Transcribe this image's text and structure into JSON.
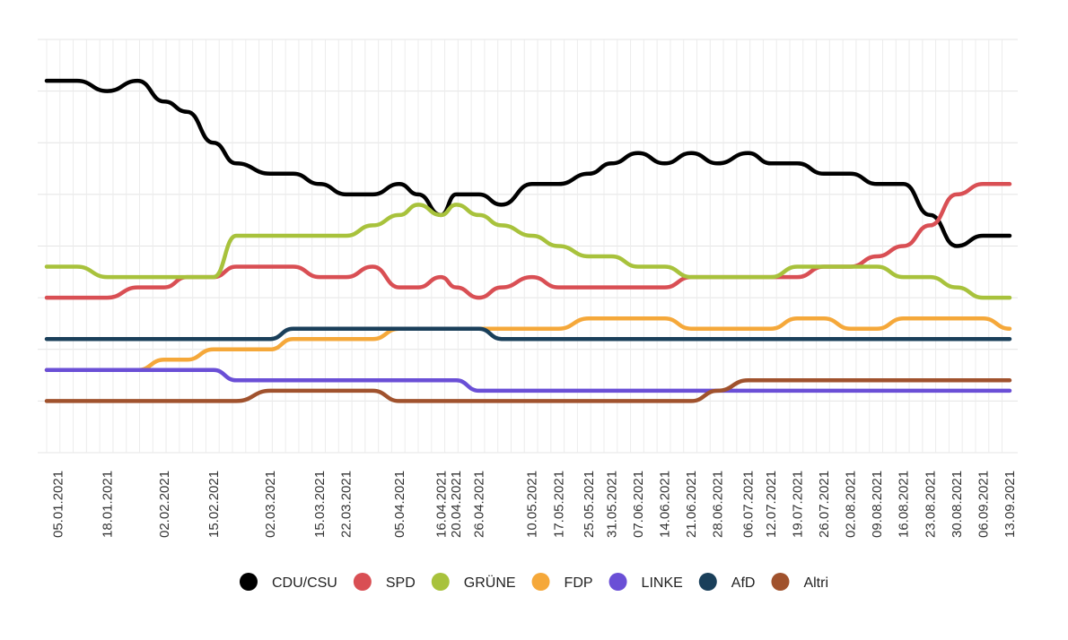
{
  "chart_data": {
    "type": "line",
    "title": "",
    "xlabel": "",
    "ylabel": "",
    "ylim": [
      0,
      40
    ],
    "grid": true,
    "legend_position": "bottom",
    "x": [
      "2021-01-02",
      "2021-01-10",
      "2021-01-18",
      "2021-01-26",
      "2021-02-02",
      "2021-02-08",
      "2021-02-15",
      "2021-02-21",
      "2021-03-02",
      "2021-03-08",
      "2021-03-15",
      "2021-03-22",
      "2021-03-29",
      "2021-04-05",
      "2021-04-10",
      "2021-04-16",
      "2021-04-20",
      "2021-04-26",
      "2021-05-02",
      "2021-05-10",
      "2021-05-17",
      "2021-05-25",
      "2021-05-31",
      "2021-06-07",
      "2021-06-14",
      "2021-06-21",
      "2021-06-28",
      "2021-07-06",
      "2021-07-12",
      "2021-07-19",
      "2021-07-26",
      "2021-08-02",
      "2021-08-09",
      "2021-08-16",
      "2021-08-23",
      "2021-08-30",
      "2021-09-06",
      "2021-09-13"
    ],
    "x_ticks": [
      "05.01.2021",
      "18.01.2021",
      "02.02.2021",
      "15.02.2021",
      "02.03.2021",
      "15.03.2021",
      "22.03.2021",
      "05.04.2021",
      "16.04.2021",
      "20.04.2021",
      "26.04.2021",
      "10.05.2021",
      "17.05.2021",
      "25.05.2021",
      "31.05.2021",
      "07.06.2021",
      "14.06.2021",
      "21.06.2021",
      "28.06.2021",
      "06.07.2021",
      "12.07.2021",
      "19.07.2021",
      "26.07.2021",
      "02.08.2021",
      "09.08.2021",
      "16.08.2021",
      "23.08.2021",
      "30.08.2021",
      "06.09.2021",
      "13.09.2021"
    ],
    "series": [
      {
        "name": "CDU/CSU",
        "color": "#000000",
        "values": [
          36,
          36,
          35,
          36,
          34,
          33,
          30,
          28,
          27,
          27,
          26,
          25,
          25,
          26,
          25,
          23,
          25,
          25,
          24,
          26,
          26,
          27,
          28,
          29,
          28,
          29,
          28,
          29,
          28,
          28,
          27,
          27,
          26,
          26,
          23,
          20,
          21,
          21
        ]
      },
      {
        "name": "SPD",
        "color": "#d94f54",
        "values": [
          15,
          15,
          15,
          16,
          16,
          17,
          17,
          18,
          18,
          18,
          17,
          17,
          18,
          16,
          16,
          17,
          16,
          15,
          16,
          17,
          16,
          16,
          16,
          16,
          16,
          17,
          17,
          17,
          17,
          17,
          18,
          18,
          19,
          20,
          22,
          25,
          26,
          26
        ]
      },
      {
        "name": "GRÜNE",
        "color": "#a8c23c",
        "values": [
          18,
          18,
          17,
          17,
          17,
          17,
          17,
          21,
          21,
          21,
          21,
          21,
          22,
          23,
          24,
          23,
          24,
          23,
          22,
          21,
          20,
          19,
          19,
          18,
          18,
          17,
          17,
          17,
          17,
          18,
          18,
          18,
          18,
          17,
          17,
          16,
          15,
          15
        ]
      },
      {
        "name": "FDP",
        "color": "#f5a83a",
        "values": [
          8,
          8,
          8,
          8,
          9,
          9,
          10,
          10,
          10,
          11,
          11,
          11,
          11,
          12,
          12,
          12,
          12,
          12,
          12,
          12,
          12,
          13,
          13,
          13,
          13,
          12,
          12,
          12,
          12,
          13,
          13,
          12,
          12,
          13,
          13,
          13,
          13,
          12
        ]
      },
      {
        "name": "LINKE",
        "color": "#6a4fd6",
        "values": [
          8,
          8,
          8,
          8,
          8,
          8,
          8,
          7,
          7,
          7,
          7,
          7,
          7,
          7,
          7,
          7,
          7,
          6,
          6,
          6,
          6,
          6,
          6,
          6,
          6,
          6,
          6,
          6,
          6,
          6,
          6,
          6,
          6,
          6,
          6,
          6,
          6,
          6
        ]
      },
      {
        "name": "AfD",
        "color": "#1a3f5a",
        "values": [
          11,
          11,
          11,
          11,
          11,
          11,
          11,
          11,
          11,
          12,
          12,
          12,
          12,
          12,
          12,
          12,
          12,
          12,
          11,
          11,
          11,
          11,
          11,
          11,
          11,
          11,
          11,
          11,
          11,
          11,
          11,
          11,
          11,
          11,
          11,
          11,
          11,
          11
        ]
      },
      {
        "name": "Altri",
        "color": "#a0522d",
        "values": [
          5,
          5,
          5,
          5,
          5,
          5,
          5,
          5,
          6,
          6,
          6,
          6,
          6,
          5,
          5,
          5,
          5,
          5,
          5,
          5,
          5,
          5,
          5,
          5,
          5,
          5,
          6,
          7,
          7,
          7,
          7,
          7,
          7,
          7,
          7,
          7,
          7,
          7
        ]
      }
    ]
  }
}
